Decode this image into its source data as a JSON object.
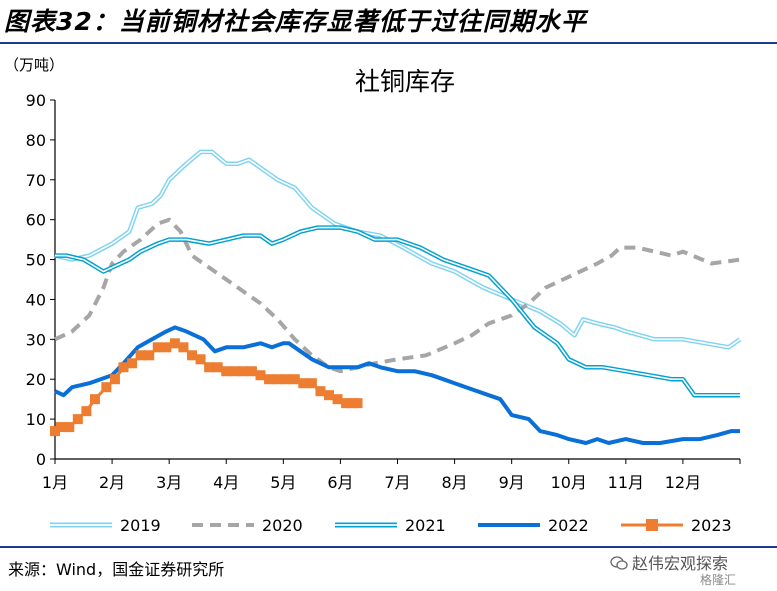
{
  "figure_title": "图表32：当前铜材社会库存显著低于过往同期水平",
  "source": "来源：Wind，国金证券研究所",
  "watermark": "赵伟宏观探索",
  "watermark2": "格隆汇",
  "chart_data": {
    "type": "line",
    "title": "社铜库存",
    "unit": "（万吨）",
    "ylim": [
      0,
      90
    ],
    "yticks": [
      0,
      10,
      20,
      30,
      40,
      50,
      60,
      70,
      80,
      90
    ],
    "xlim": [
      1,
      13
    ],
    "xtick_labels": [
      "1月",
      "2月",
      "3月",
      "4月",
      "5月",
      "6月",
      "7月",
      "8月",
      "9月",
      "10月",
      "11月",
      "12月"
    ],
    "legend_position": "bottom",
    "grid": false,
    "series": [
      {
        "name": "2019",
        "color": "#7fd3f0",
        "style": "double",
        "x": [
          1.0,
          1.3,
          1.6,
          2.0,
          2.3,
          2.45,
          2.7,
          2.85,
          3.0,
          3.3,
          3.55,
          3.75,
          4.0,
          4.2,
          4.4,
          4.7,
          4.9,
          5.2,
          5.5,
          5.9,
          6.3,
          6.7,
          7.1,
          7.6,
          8.0,
          8.5,
          9.0,
          9.5,
          9.85,
          10.1,
          10.25,
          10.5,
          10.8,
          11.0,
          11.5,
          12.0,
          12.4,
          12.8,
          13.0
        ],
        "y": [
          51,
          50,
          51,
          54,
          57,
          63,
          64,
          66,
          70,
          74,
          77,
          77,
          74,
          74,
          75,
          72,
          70,
          68,
          63,
          59,
          57,
          56,
          53,
          49,
          47,
          43,
          40,
          37,
          34,
          31,
          35,
          34,
          33,
          32,
          30,
          30,
          29,
          28,
          30
        ]
      },
      {
        "name": "2020",
        "color": "#a6a6a6",
        "style": "dashed",
        "x": [
          1.0,
          1.3,
          1.6,
          1.85,
          2.0,
          2.2,
          2.5,
          2.8,
          3.0,
          3.2,
          3.4,
          3.7,
          4.0,
          4.3,
          4.6,
          4.9,
          5.2,
          5.5,
          5.8,
          6.0,
          6.3,
          6.6,
          7.0,
          7.5,
          8.0,
          8.3,
          8.6,
          9.0,
          9.3,
          9.6,
          9.9,
          10.2,
          10.5,
          10.75,
          10.9,
          11.2,
          11.5,
          11.8,
          12.0,
          12.5,
          13.0
        ],
        "y": [
          30,
          32,
          36,
          43,
          49,
          52,
          55,
          59,
          60,
          57,
          51,
          48,
          45,
          42,
          39,
          35,
          30,
          26,
          23,
          22,
          23,
          24,
          25,
          26,
          29,
          31,
          34,
          36,
          39,
          43,
          45,
          47,
          49,
          51,
          53,
          53,
          52,
          51,
          52,
          49,
          50
        ]
      },
      {
        "name": "2021",
        "color": "#00a0d2",
        "style": "double",
        "x": [
          1.0,
          1.2,
          1.5,
          1.85,
          2.0,
          2.3,
          2.5,
          2.8,
          3.0,
          3.3,
          3.7,
          4.0,
          4.3,
          4.6,
          4.8,
          5.0,
          5.3,
          5.6,
          5.8,
          6.0,
          6.3,
          6.6,
          7.0,
          7.4,
          7.8,
          8.2,
          8.6,
          9.0,
          9.4,
          9.8,
          10.0,
          10.3,
          10.6,
          11.0,
          11.4,
          11.8,
          12.0,
          12.2,
          12.6,
          13.0
        ],
        "y": [
          51,
          51,
          50,
          47,
          48,
          50,
          52,
          54,
          55,
          55,
          54,
          55,
          56,
          56,
          54,
          55,
          57,
          58,
          58,
          58,
          57,
          55,
          55,
          53,
          50,
          48,
          46,
          40,
          33,
          29,
          25,
          23,
          23,
          22,
          21,
          20,
          20,
          16,
          16,
          16
        ]
      },
      {
        "name": "2022",
        "color": "#0a6fd6",
        "style": "solid",
        "x": [
          1.0,
          1.15,
          1.3,
          1.6,
          1.8,
          2.0,
          2.2,
          2.45,
          2.7,
          2.95,
          3.1,
          3.3,
          3.6,
          3.8,
          4.0,
          4.3,
          4.6,
          4.8,
          5.0,
          5.1,
          5.3,
          5.5,
          5.8,
          6.0,
          6.3,
          6.5,
          6.7,
          7.0,
          7.3,
          7.6,
          7.8,
          8.0,
          8.4,
          8.8,
          9.0,
          9.3,
          9.5,
          9.8,
          10.0,
          10.3,
          10.5,
          10.7,
          11.0,
          11.3,
          11.6,
          12.0,
          12.3,
          12.6,
          12.85,
          13.0
        ],
        "y": [
          17,
          16,
          18,
          19,
          20,
          21,
          24,
          28,
          30,
          32,
          33,
          32,
          30,
          27,
          28,
          28,
          29,
          28,
          29,
          29,
          27,
          25,
          23,
          23,
          23,
          24,
          23,
          22,
          22,
          21,
          20,
          19,
          17,
          15,
          11,
          10,
          7,
          6,
          5,
          4,
          5,
          4,
          5,
          4,
          4,
          5,
          5,
          6,
          7,
          7
        ]
      },
      {
        "name": "2023",
        "color": "#ed7d31",
        "style": "marker",
        "x": [
          1.0,
          1.1,
          1.25,
          1.4,
          1.55,
          1.7,
          1.9,
          2.05,
          2.2,
          2.35,
          2.5,
          2.65,
          2.8,
          2.95,
          3.1,
          3.25,
          3.4,
          3.55,
          3.7,
          3.85,
          4.0,
          4.15,
          4.3,
          4.45,
          4.6,
          4.75,
          4.9,
          5.05,
          5.2,
          5.35,
          5.5,
          5.65,
          5.8,
          5.95,
          6.1,
          6.2,
          6.3
        ],
        "y": [
          7,
          8,
          8,
          10,
          12,
          15,
          18,
          20,
          23,
          24,
          26,
          26,
          28,
          28,
          29,
          28,
          26,
          25,
          23,
          23,
          22,
          22,
          22,
          22,
          21,
          20,
          20,
          20,
          20,
          19,
          19,
          17,
          16,
          15,
          14,
          14,
          14
        ]
      }
    ]
  }
}
